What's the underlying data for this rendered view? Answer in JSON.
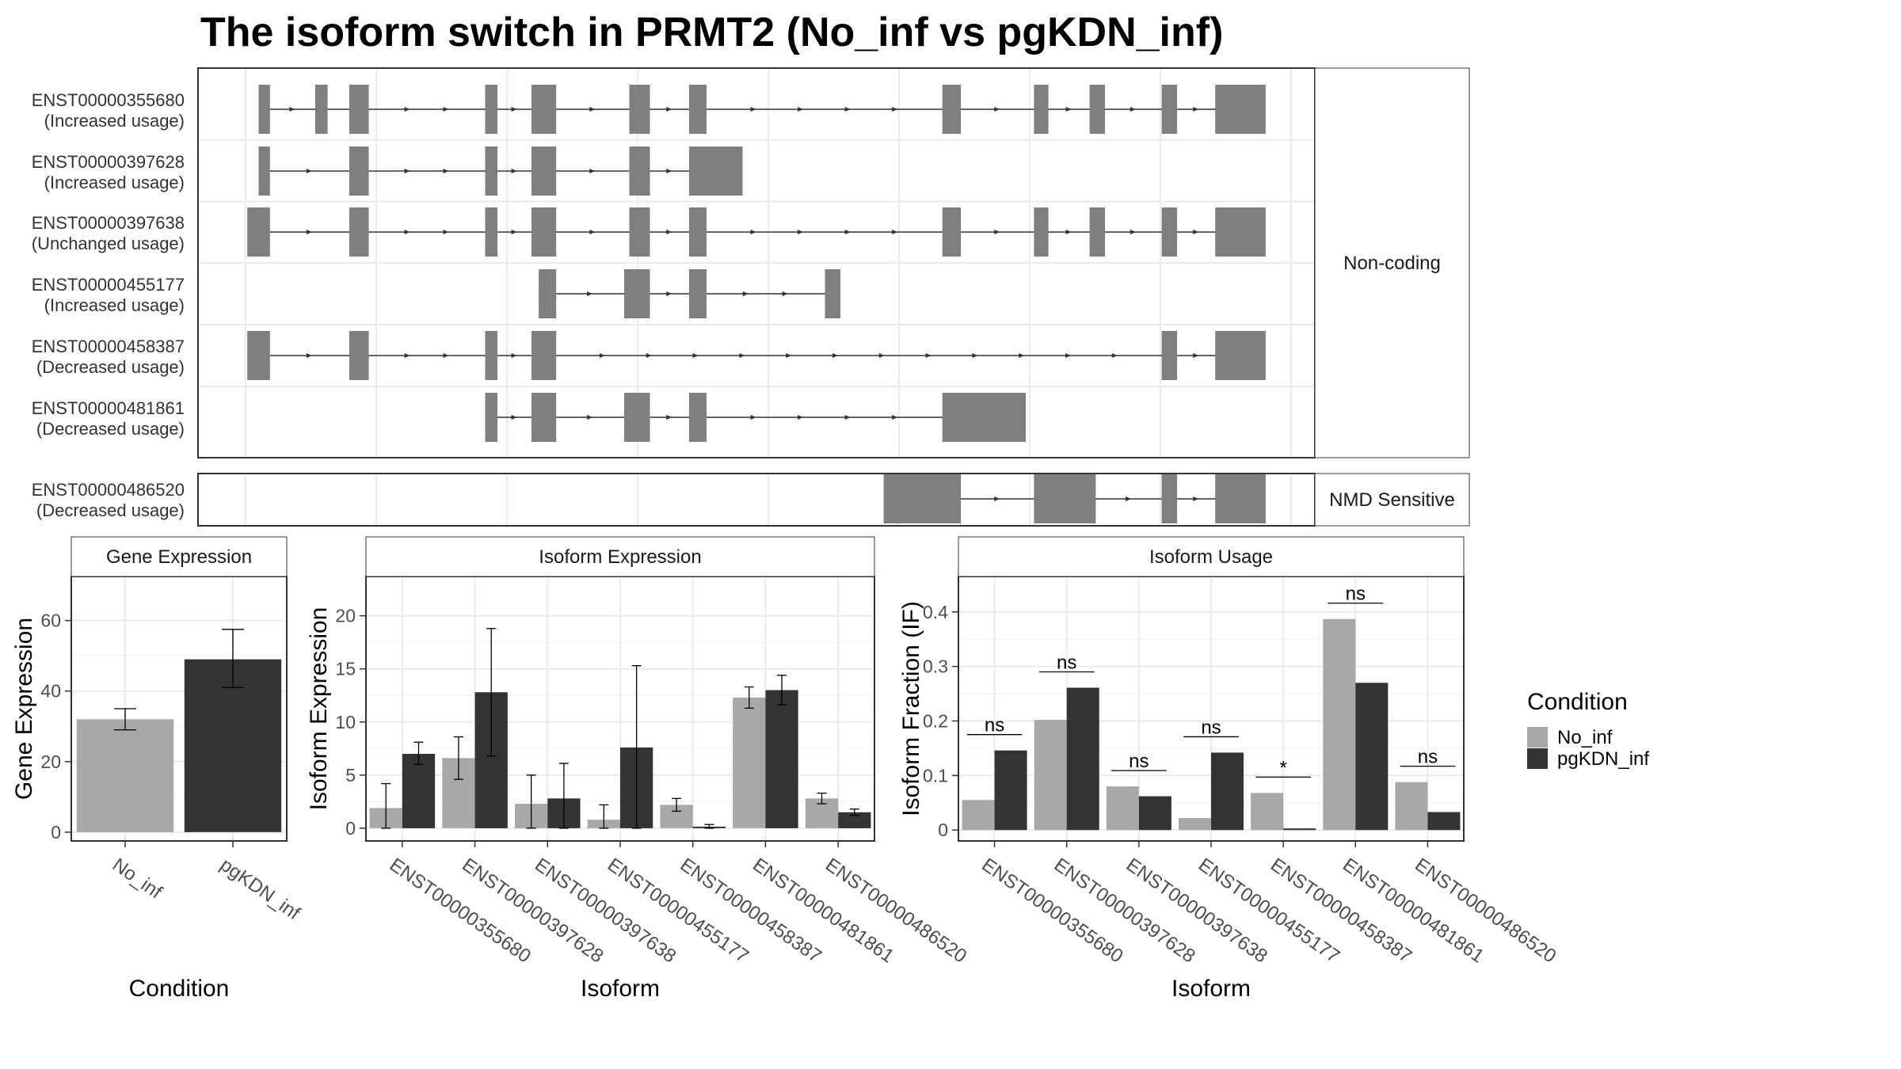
{
  "title": "The isoform switch in PRMT2 (No_inf vs pgKDN_inf)",
  "structure": {
    "groups": [
      {
        "label": "Non-coding",
        "isoforms": [
          {
            "id": "ENST00000355680",
            "usage": "(Increased usage)",
            "exons": [
              [
                0.005,
                0.016
              ],
              [
                0.06,
                0.072
              ],
              [
                0.093,
                0.112
              ],
              [
                0.225,
                0.237
              ],
              [
                0.27,
                0.294
              ],
              [
                0.365,
                0.385
              ],
              [
                0.423,
                0.44
              ],
              [
                0.669,
                0.687
              ],
              [
                0.758,
                0.772
              ],
              [
                0.812,
                0.827
              ],
              [
                0.882,
                0.897
              ],
              [
                0.934,
                0.983
              ]
            ]
          },
          {
            "id": "ENST00000397628",
            "usage": "(Increased usage)",
            "exons": [
              [
                0.005,
                0.016
              ],
              [
                0.093,
                0.112
              ],
              [
                0.225,
                0.237
              ],
              [
                0.27,
                0.294
              ],
              [
                0.365,
                0.385
              ],
              [
                0.423,
                0.475
              ]
            ]
          },
          {
            "id": "ENST00000397638",
            "usage": "(Unchanged usage)",
            "exons": [
              [
                -0.006,
                0.016
              ],
              [
                0.093,
                0.112
              ],
              [
                0.225,
                0.237
              ],
              [
                0.27,
                0.294
              ],
              [
                0.365,
                0.385
              ],
              [
                0.423,
                0.44
              ],
              [
                0.669,
                0.687
              ],
              [
                0.758,
                0.772
              ],
              [
                0.812,
                0.827
              ],
              [
                0.882,
                0.897
              ],
              [
                0.934,
                0.983
              ]
            ]
          },
          {
            "id": "ENST00000455177",
            "usage": "(Increased usage)",
            "exons": [
              [
                0.277,
                0.294
              ],
              [
                0.36,
                0.385
              ],
              [
                0.423,
                0.44
              ],
              [
                0.555,
                0.57
              ]
            ]
          },
          {
            "id": "ENST00000458387",
            "usage": "(Decreased usage)",
            "exons": [
              [
                -0.006,
                0.016
              ],
              [
                0.093,
                0.112
              ],
              [
                0.225,
                0.237
              ],
              [
                0.27,
                0.294
              ],
              [
                0.882,
                0.897
              ],
              [
                0.934,
                0.983
              ]
            ]
          },
          {
            "id": "ENST00000481861",
            "usage": "(Decreased usage)",
            "exons": [
              [
                0.225,
                0.237
              ],
              [
                0.27,
                0.294
              ],
              [
                0.36,
                0.385
              ],
              [
                0.423,
                0.44
              ],
              [
                0.669,
                0.75
              ]
            ]
          }
        ]
      },
      {
        "label": "NMD Sensitive",
        "isoforms": [
          {
            "id": "ENST00000486520",
            "usage": "(Decreased usage)",
            "exons": [
              [
                0.612,
                0.687
              ],
              [
                0.758,
                0.818
              ],
              [
                0.882,
                0.897
              ],
              [
                0.934,
                0.983
              ]
            ]
          }
        ]
      }
    ]
  },
  "chart_data": [
    {
      "type": "bar",
      "title": "Gene Expression",
      "xlabel": "Condition",
      "ylabel": "Gene Expression",
      "categories": [
        "No_inf",
        "pgKDN_inf"
      ],
      "values": [
        32,
        49
      ],
      "errors": [
        [
          29,
          35
        ],
        [
          41,
          57.5
        ]
      ],
      "colors": [
        "#a8a8a8",
        "#333333"
      ],
      "ylim": [
        -2.5,
        72.5
      ],
      "yticks": [
        0,
        20,
        40,
        60
      ]
    },
    {
      "type": "bar",
      "title": "Isoform Expression",
      "xlabel": "Isoform",
      "ylabel": "Isoform Expression",
      "categories": [
        "ENST00000355680",
        "ENST00000397628",
        "ENST00000397638",
        "ENST00000455177",
        "ENST00000458387",
        "ENST00000481861",
        "ENST00000486520"
      ],
      "series": [
        {
          "name": "No_inf",
          "values": [
            1.9,
            6.6,
            2.3,
            0.8,
            2.2,
            12.3,
            2.8
          ],
          "errors": [
            [
              0.0,
              4.2
            ],
            [
              4.6,
              8.6
            ],
            [
              0.0,
              5.0
            ],
            [
              0.0,
              2.2
            ],
            [
              1.6,
              2.8
            ],
            [
              11.3,
              13.3
            ],
            [
              2.3,
              3.3
            ]
          ]
        },
        {
          "name": "pgKDN_inf",
          "values": [
            7.0,
            12.8,
            2.8,
            7.6,
            0.15,
            13.0,
            1.5
          ],
          "errors": [
            [
              6.0,
              8.1
            ],
            [
              6.8,
              18.8
            ],
            [
              0.0,
              6.1
            ],
            [
              0.0,
              15.3
            ],
            [
              0.0,
              0.35
            ],
            [
              11.6,
              14.4
            ],
            [
              1.2,
              1.8
            ]
          ]
        }
      ],
      "ylim": [
        -1.2,
        23.7
      ],
      "yticks": [
        0,
        5,
        10,
        15,
        20
      ]
    },
    {
      "type": "bar",
      "title": "Isoform Usage",
      "xlabel": "Isoform",
      "ylabel": "Isoform Fraction (IF)",
      "categories": [
        "ENST00000355680",
        "ENST00000397628",
        "ENST00000397638",
        "ENST00000455177",
        "ENST00000458387",
        "ENST00000481861",
        "ENST00000486520"
      ],
      "series": [
        {
          "name": "No_inf",
          "values": [
            0.055,
            0.202,
            0.08,
            0.022,
            0.068,
            0.387,
            0.088
          ]
        },
        {
          "name": "pgKDN_inf",
          "values": [
            0.146,
            0.261,
            0.062,
            0.142,
            0.003,
            0.27,
            0.033
          ]
        }
      ],
      "significance": [
        "ns",
        "ns",
        "ns",
        "ns",
        "*",
        "ns",
        "ns"
      ],
      "ylim": [
        -0.02,
        0.465
      ],
      "yticks": [
        0.0,
        0.1,
        0.2,
        0.3,
        0.4
      ]
    }
  ],
  "legend": {
    "title": "Condition",
    "items": [
      {
        "label": "No_inf",
        "color": "#a8a8a8"
      },
      {
        "label": "pgKDN_inf",
        "color": "#333333"
      }
    ]
  }
}
